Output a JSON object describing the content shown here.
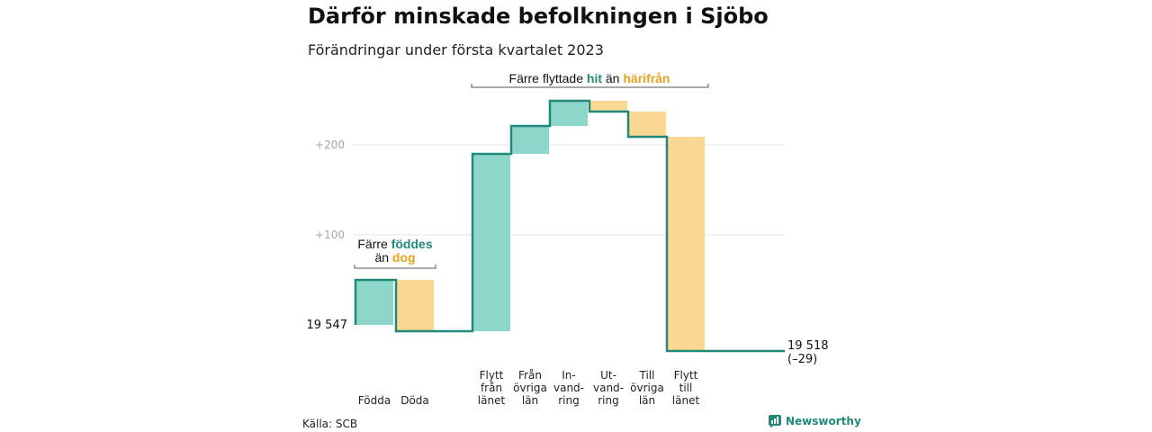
{
  "title": "Därför minskade befolkningen i Sjöbo",
  "subtitle": "Förändringar under första kvartalet 2023",
  "source": "Källa: SCB",
  "brand": "Newsworthy",
  "colors": {
    "increase_fill": "#8dd6ca",
    "decrease_fill": "#fbd892",
    "line": "#22897a",
    "grid": "#e3e3e3",
    "accent_green": "#22897a",
    "accent_orange": "#e8a21f"
  },
  "chart_data": {
    "type": "waterfall",
    "start_label": "19 547",
    "start_value": 19547,
    "end_label": "19 518",
    "end_change_label": "(–29)",
    "end_value": 19518,
    "y_ticks": [
      {
        "value": 200,
        "label": "+200"
      },
      {
        "value": 100,
        "label": "+100"
      }
    ],
    "steps": [
      {
        "label": [
          "Födda"
        ],
        "change": 50,
        "kind": "increase"
      },
      {
        "label": [
          "Döda"
        ],
        "change": -57,
        "kind": "decrease"
      },
      {
        "label": [
          "Flytt",
          "från",
          "länet"
        ],
        "change": 197,
        "kind": "increase"
      },
      {
        "label": [
          "Från",
          "övriga",
          "län"
        ],
        "change": 31,
        "kind": "increase"
      },
      {
        "label": [
          "In-",
          "vand-",
          "ring"
        ],
        "change": 28,
        "kind": "increase"
      },
      {
        "label": [
          "Ut-",
          "vand-",
          "ring"
        ],
        "change": -12,
        "kind": "decrease"
      },
      {
        "label": [
          "Till",
          "övriga",
          "län"
        ],
        "change": -28,
        "kind": "decrease"
      },
      {
        "label": [
          "Flytt",
          "till",
          "länet"
        ],
        "change": -238,
        "kind": "decrease"
      }
    ],
    "annotations": [
      {
        "parts": [
          [
            "Färre ",
            "plain"
          ],
          [
            "föddes",
            "green"
          ]
        ],
        "line2": [
          [
            "än ",
            "plain"
          ],
          [
            "dog",
            "orange"
          ]
        ]
      },
      {
        "parts": [
          [
            "Färre flyttade ",
            "plain"
          ],
          [
            "hit",
            "green"
          ],
          [
            " än ",
            "plain"
          ],
          [
            "härifrån",
            "orange"
          ]
        ]
      }
    ]
  }
}
